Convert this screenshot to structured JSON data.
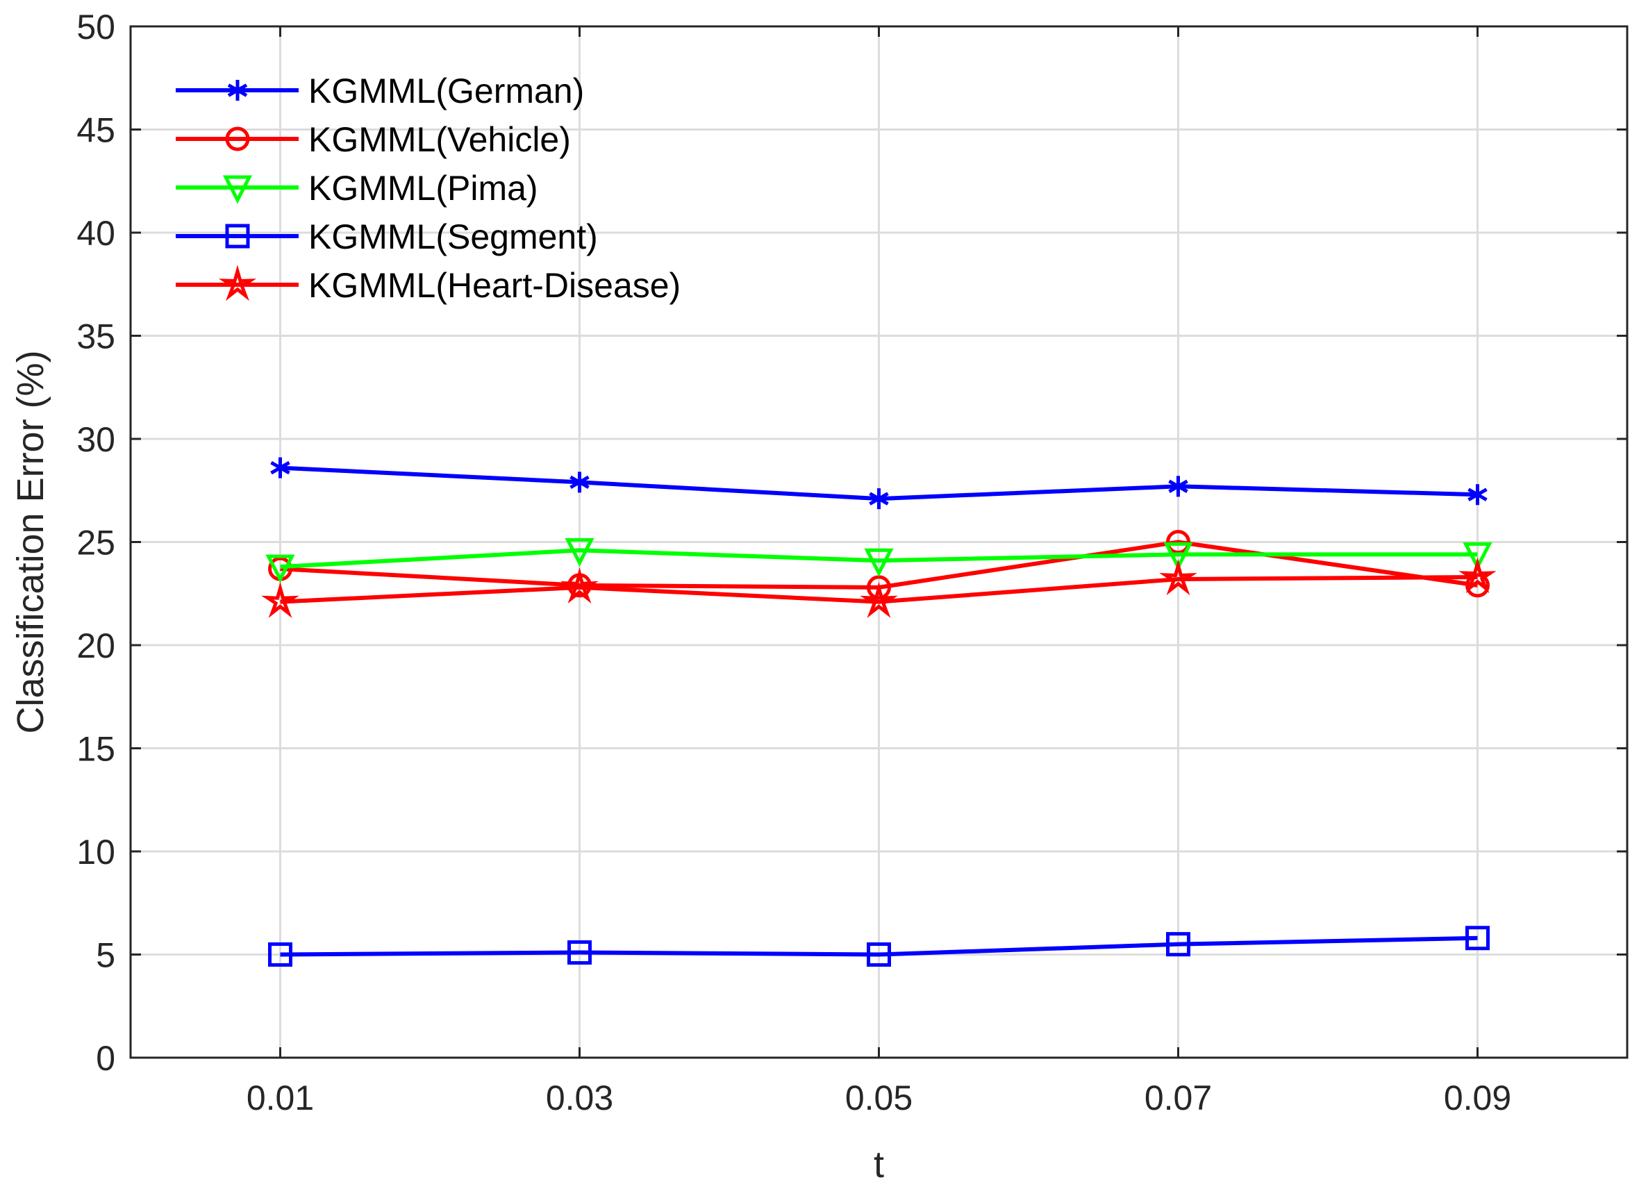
{
  "chart_data": {
    "type": "line",
    "title": "",
    "xlabel": "t",
    "ylabel": "Classification Error (%)",
    "xlim": [
      0,
      0.1
    ],
    "ylim": [
      0,
      50
    ],
    "grid": true,
    "legend_position": "top-left",
    "x": [
      0.01,
      0.03,
      0.05,
      0.07,
      0.09
    ],
    "x_tick_labels": [
      "0.01",
      "0.03",
      "0.05",
      "0.07",
      "0.09"
    ],
    "y_ticks": [
      0,
      5,
      10,
      15,
      20,
      25,
      30,
      35,
      40,
      45,
      50
    ],
    "series": [
      {
        "name": "KGMML(German)",
        "color": "#0000ff",
        "marker": "asterisk",
        "values": [
          28.6,
          27.9,
          27.1,
          27.7,
          27.3
        ]
      },
      {
        "name": "KGMML(Vehicle)",
        "color": "#ff0000",
        "marker": "circle",
        "values": [
          23.7,
          22.9,
          22.8,
          25.0,
          22.9
        ]
      },
      {
        "name": "KGMML(Pima)",
        "color": "#00ff00",
        "marker": "triangle-down",
        "values": [
          23.8,
          24.6,
          24.1,
          24.4,
          24.4
        ]
      },
      {
        "name": "KGMML(Segment)",
        "color": "#0000ff",
        "marker": "square",
        "values": [
          5.0,
          5.1,
          5.0,
          5.5,
          5.8
        ]
      },
      {
        "name": "KGMML(Heart-Disease)",
        "color": "#ff0000",
        "marker": "star",
        "values": [
          22.1,
          22.8,
          22.1,
          23.2,
          23.3
        ]
      }
    ]
  }
}
